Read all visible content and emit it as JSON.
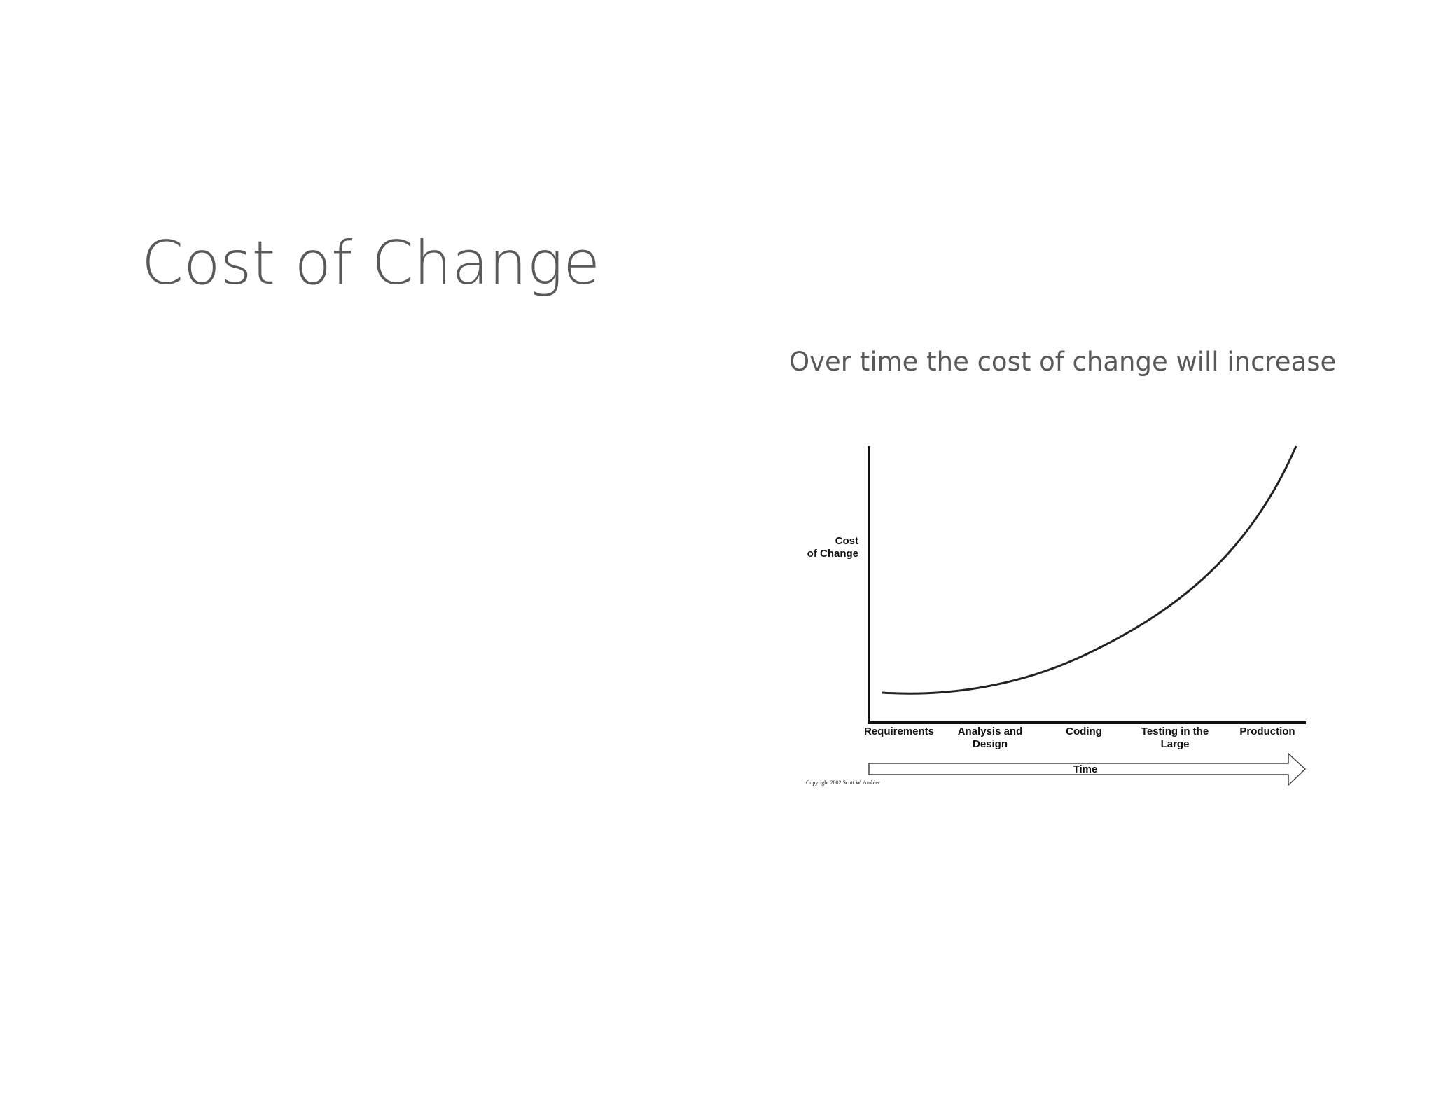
{
  "slide": {
    "title": "Cost of Change",
    "subtitle": "Over time the cost of change will increase"
  },
  "diagram": {
    "y_axis_label": [
      "Cost",
      "of Change"
    ],
    "stages": [
      [
        "Requirements"
      ],
      [
        "Analysis and",
        "Design"
      ],
      [
        "Coding"
      ],
      [
        "Testing in the",
        "Large"
      ],
      [
        "Production"
      ]
    ],
    "time_label": "Time",
    "copyright": "Copyright 2002 Scott W. Ambler"
  }
}
